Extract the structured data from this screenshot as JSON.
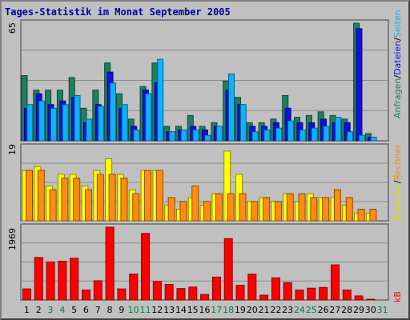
{
  "title": "Tages-Statistik im Monat September 2005",
  "colors": {
    "background": "#c0c0c0",
    "title": "#0000a0",
    "anfragen": "#1f7f5f",
    "dateien": "#1010e0",
    "seiten": "#10b0ff",
    "besuche": "#ffff00",
    "rechner": "#ff8c10",
    "kb": "#ff0000",
    "weekend_label": "#007f40",
    "weekday_label": "#000000"
  },
  "right_labels": {
    "top": [
      {
        "text": "Anfragen",
        "color": "#1f7f5f"
      },
      {
        "text": "/",
        "color": "#000000"
      },
      {
        "text": "Dateien",
        "color": "#1010e0"
      },
      {
        "text": "/",
        "color": "#000000"
      },
      {
        "text": "Seiten",
        "color": "#10b0ff"
      }
    ],
    "middle": [
      {
        "text": "Besuche",
        "color": "#e6d800"
      },
      {
        "text": "/",
        "color": "#000000"
      },
      {
        "text": "Rechner",
        "color": "#ff8c10"
      }
    ],
    "bottom": [
      {
        "text": "kB",
        "color": "#ff0000"
      }
    ]
  },
  "chart_data": [
    {
      "type": "bar",
      "panel": "top",
      "y_max_label": "65",
      "ylim": [
        0,
        65
      ],
      "categories": [
        "1",
        "2",
        "3",
        "4",
        "5",
        "6",
        "7",
        "8",
        "9",
        "10",
        "11",
        "12",
        "13",
        "14",
        "15",
        "16",
        "17",
        "18",
        "19",
        "20",
        "21",
        "22",
        "23",
        "24",
        "25",
        "26",
        "27",
        "28",
        "29",
        "30",
        "31"
      ],
      "weekend_days": [
        3,
        4,
        10,
        11,
        17,
        18,
        24,
        25,
        31
      ],
      "series": [
        {
          "name": "Anfragen",
          "values": [
            36,
            28,
            28,
            28,
            35,
            18,
            28,
            43,
            26,
            12,
            30,
            43,
            8,
            8,
            14,
            8,
            10,
            33,
            24,
            10,
            10,
            12,
            25,
            13,
            14,
            16,
            14,
            12,
            65,
            4,
            0
          ]
        },
        {
          "name": "Dateien",
          "values": [
            18,
            26,
            20,
            22,
            24,
            10,
            20,
            38,
            18,
            8,
            28,
            32,
            5,
            6,
            8,
            6,
            8,
            28,
            20,
            8,
            8,
            10,
            18,
            10,
            10,
            12,
            10,
            10,
            62,
            2,
            0
          ]
        },
        {
          "name": "Seiten",
          "values": [
            20,
            22,
            18,
            20,
            25,
            12,
            19,
            32,
            20,
            6,
            26,
            45,
            5,
            6,
            6,
            3,
            8,
            37,
            20,
            5,
            6,
            7,
            11,
            6,
            7,
            8,
            13,
            5,
            3,
            2,
            0
          ]
        }
      ]
    },
    {
      "type": "bar",
      "panel": "middle",
      "y_max_label": "19",
      "ylim": [
        0,
        19
      ],
      "categories": [
        "1",
        "2",
        "3",
        "4",
        "5",
        "6",
        "7",
        "8",
        "9",
        "10",
        "11",
        "12",
        "13",
        "14",
        "15",
        "16",
        "17",
        "18",
        "19",
        "20",
        "21",
        "22",
        "23",
        "24",
        "25",
        "26",
        "27",
        "28",
        "29",
        "30",
        "31"
      ],
      "series": [
        {
          "name": "Besuche",
          "values": [
            13,
            14,
            9,
            12,
            12,
            9,
            13,
            16,
            12,
            8,
            13,
            13,
            4,
            3,
            6,
            4,
            7,
            18,
            12,
            5,
            6,
            5,
            7,
            5,
            7,
            6,
            6,
            4,
            2,
            2,
            0
          ]
        },
        {
          "name": "Rechner",
          "values": [
            13,
            13,
            8,
            11,
            11,
            8,
            12,
            12,
            11,
            7,
            13,
            13,
            6,
            5,
            9,
            5,
            7,
            7,
            7,
            5,
            6,
            5,
            7,
            7,
            6,
            6,
            8,
            6,
            3,
            3,
            0
          ]
        }
      ]
    },
    {
      "type": "bar",
      "panel": "bottom",
      "y_max_label": "1969",
      "ylim": [
        0,
        1969
      ],
      "categories": [
        "1",
        "2",
        "3",
        "4",
        "5",
        "6",
        "7",
        "8",
        "9",
        "10",
        "11",
        "12",
        "13",
        "14",
        "15",
        "16",
        "17",
        "18",
        "19",
        "20",
        "21",
        "22",
        "23",
        "24",
        "25",
        "26",
        "27",
        "28",
        "29",
        "30",
        "31"
      ],
      "series": [
        {
          "name": "kB",
          "values": [
            300,
            1150,
            1030,
            1050,
            1130,
            270,
            520,
            1969,
            300,
            700,
            1800,
            500,
            420,
            310,
            350,
            150,
            620,
            1660,
            400,
            700,
            130,
            600,
            470,
            270,
            320,
            340,
            950,
            270,
            110,
            20,
            0
          ]
        }
      ]
    }
  ]
}
